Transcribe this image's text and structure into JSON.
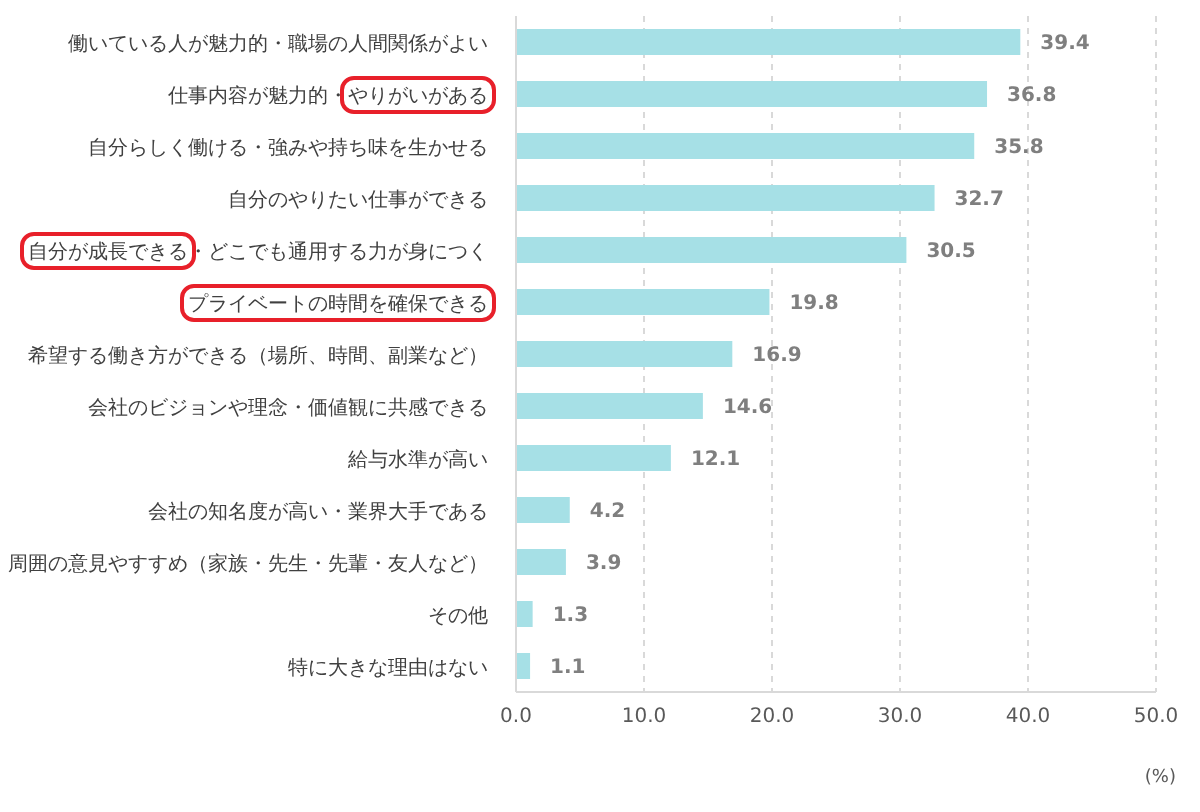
{
  "chart_data": {
    "type": "bar",
    "orientation": "horizontal",
    "xlabel": "(%)",
    "categories": [
      "働いている人が魅力的・職場の人間関係がよい",
      "仕事内容が魅力的・やりがいがある",
      "自分らしく働ける・強みや持ち味を生かせる",
      "自分のやりたい仕事ができる",
      "自分が成長できる・どこでも通用する力が身につく",
      "プライベートの時間を確保できる",
      "希望する働き方ができる（場所、時間、副業など）",
      "会社のビジョンや理念・価値観に共感できる",
      "給与水準が高い",
      "会社の知名度が高い・業界大手である",
      "周囲の意見やすすめ（家族・先生・先輩・友人など）",
      "その他",
      "特に大きな理由はない"
    ],
    "values": [
      39.4,
      36.8,
      35.8,
      32.7,
      30.5,
      19.8,
      16.9,
      14.6,
      12.1,
      4.2,
      3.9,
      1.3,
      1.1
    ],
    "color": "#a6e0e6",
    "data_labels": true,
    "xlim": [
      0,
      50
    ],
    "xticks": [
      {
        "value": 0,
        "label": "0.0"
      },
      {
        "value": 10,
        "label": "10.0"
      },
      {
        "value": 20,
        "label": "20.0"
      },
      {
        "value": 30,
        "label": "30.0"
      },
      {
        "value": 40,
        "label": "40.0"
      },
      {
        "value": 50,
        "label": "50.0"
      }
    ],
    "grid": "x",
    "legend": false
  }
}
